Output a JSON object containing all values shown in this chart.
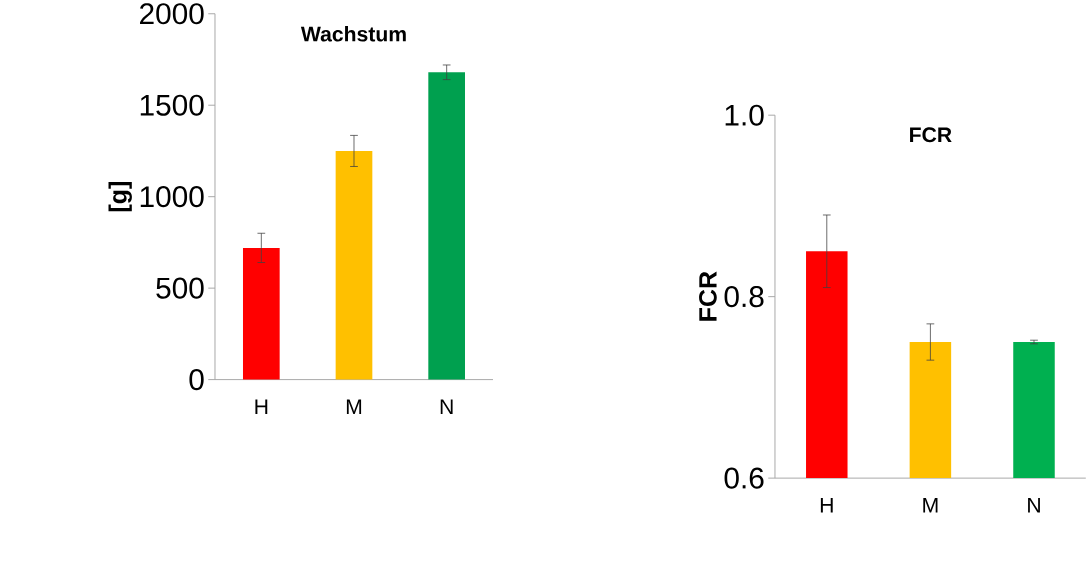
{
  "chart_data": [
    {
      "type": "bar",
      "title": "Wachstum",
      "ylabel": "[g]",
      "categories": [
        "H",
        "M",
        "N"
      ],
      "values": [
        720,
        1250,
        1680
      ],
      "colors": [
        "#ff0000",
        "#ffc000",
        "#00a04f"
      ],
      "errors": [
        80,
        85,
        40
      ],
      "ylim": [
        0,
        2000
      ],
      "yticks": [
        0,
        500,
        1000,
        1500,
        2000
      ]
    },
    {
      "type": "bar",
      "title": "FCR",
      "ylabel": "FCR",
      "categories": [
        "H",
        "M",
        "N"
      ],
      "values": [
        0.85,
        0.75,
        0.75
      ],
      "colors": [
        "#ff0000",
        "#ffc000",
        "#00b050"
      ],
      "errors": [
        0.04,
        0.02,
        0.002
      ],
      "ylim": [
        0.6,
        1.0
      ],
      "yticks": [
        0.6,
        0.8,
        {
          "value": 1.0,
          "label": "1.0"
        }
      ]
    }
  ]
}
